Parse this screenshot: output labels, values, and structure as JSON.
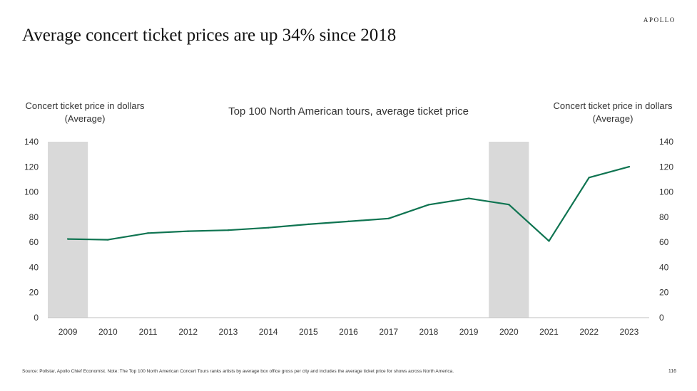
{
  "brand": "APOLLO",
  "headline": "Average concert ticket prices are up 34% since 2018",
  "left_axis_title": [
    "Concert ticket price in dollars",
    "(Average)"
  ],
  "right_axis_title": [
    "Concert ticket price in dollars",
    "(Average)"
  ],
  "footer": {
    "source": "Source: Pollstar, Apollo Chief Economist. Note: The Top 100 North American Concert Tours ranks artists by average box office gross per city and includes the average ticket price for shows across North America.",
    "page_number": "116"
  },
  "colors": {
    "line": "#0f7451",
    "shade": "#d9d9d9",
    "axis": "#bfbfbf"
  },
  "chart_data": {
    "type": "line",
    "title": "Top 100 North American tours, average ticket price",
    "xlabel": "",
    "ylabel": "Concert ticket price in dollars (Average)",
    "categories": [
      "2009",
      "2010",
      "2011",
      "2012",
      "2013",
      "2014",
      "2015",
      "2016",
      "2017",
      "2018",
      "2019",
      "2020",
      "2021",
      "2022",
      "2023"
    ],
    "series": [
      {
        "name": "Average ticket price",
        "values": [
          62.6,
          62.0,
          67.3,
          68.8,
          69.6,
          71.6,
          74.3,
          76.6,
          78.9,
          89.9,
          94.9,
          90.0,
          61.0,
          111.5,
          120.1
        ]
      }
    ],
    "ylim": [
      0,
      140
    ],
    "yticks": [
      0,
      20,
      40,
      60,
      80,
      100,
      120,
      140
    ],
    "shaded_regions": [
      {
        "label": "2009",
        "from": "2009",
        "to": "2009"
      },
      {
        "label": "2020",
        "from": "2020",
        "to": "2020"
      }
    ],
    "dual_axis": true,
    "grid": false
  }
}
